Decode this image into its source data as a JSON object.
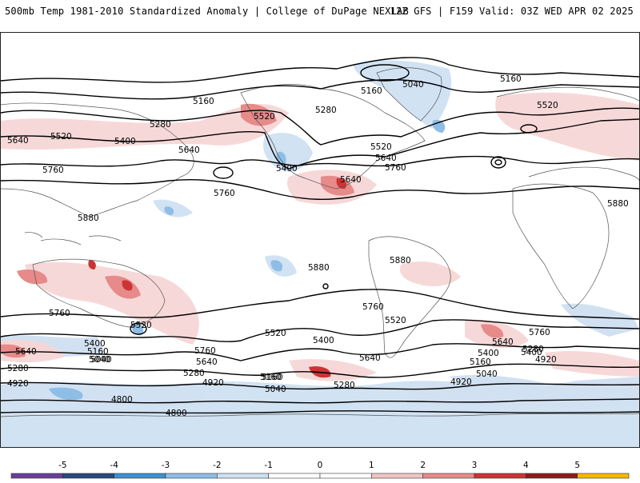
{
  "header": {
    "title": "500mb Temp 1981-2010 Standardized Anomaly | College of DuPage NEXLAB",
    "run_info": "12Z GFS | F159 Valid: 03Z WED APR 02 2025"
  },
  "map": {
    "contour_labels": [
      "5160",
      "5040",
      "5160",
      "5160",
      "5280",
      "5520",
      "5280",
      "5640",
      "5520",
      "5400",
      "5640",
      "5760",
      "5400",
      "5520",
      "5640",
      "5760",
      "5640",
      "5760",
      "5880",
      "5880",
      "5880",
      "5880",
      "5760",
      "5760",
      "5520",
      "5400",
      "5160",
      "5040",
      "5640",
      "5280",
      "4920",
      "5520",
      "5400",
      "5760",
      "5640",
      "5280",
      "5400",
      "5160",
      "5040",
      "4920",
      "5040",
      "5160",
      "4800",
      "4800",
      "5520",
      "5760",
      "5640",
      "5400",
      "5280",
      "4920",
      "5160",
      "5280",
      "5040",
      "4920",
      "5640",
      "5520"
    ]
  },
  "colorbar": {
    "ticks": [
      "-5",
      "-4",
      "-3",
      "-2",
      "-1",
      "0",
      "1",
      "2",
      "3",
      "4",
      "5"
    ],
    "colors": [
      "#6a3d9a",
      "#26497e",
      "#3d8fd1",
      "#8ebde6",
      "#cfe0f2",
      "#ffffff",
      "#ffffff",
      "#f2c3c3",
      "#e68a8a",
      "#cc3333",
      "#8f1a1a",
      "#f5b700"
    ]
  }
}
